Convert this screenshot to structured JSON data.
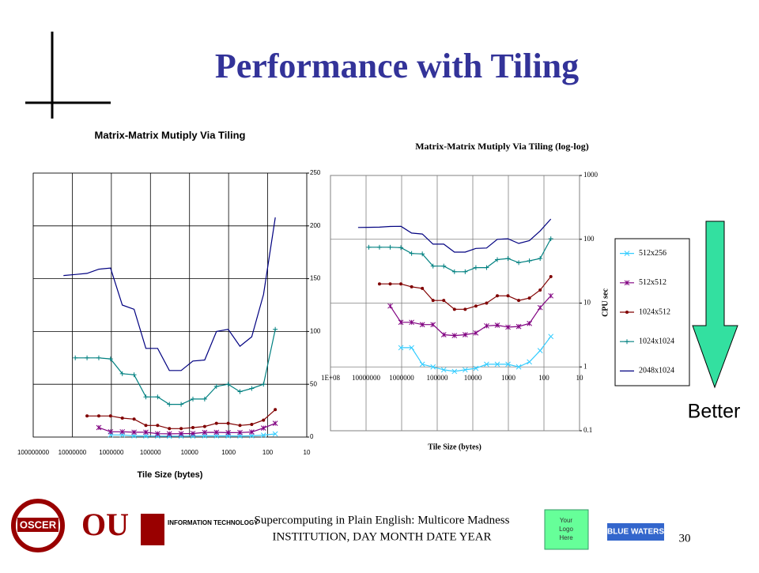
{
  "slide": {
    "title": "Performance with Tiling",
    "better": "Better",
    "footer_line1": "Supercomputing in Plain English: Multicore Madness",
    "footer_line2": "INSTITUTION, DAY MONTH DATE YEAR",
    "logo_placeholder": [
      "Your",
      "Logo",
      "Here"
    ],
    "slide_number": "30",
    "logos": {
      "oscer": "OSCER",
      "ou": "OU",
      "it": "INFORMATION TECHNOLOGY",
      "blue_waters": "BLUE WATERS"
    }
  },
  "chart_data": [
    {
      "type": "line",
      "title": "Matrix-Matrix Mutiply Via Tiling",
      "x_label": "Tile Size (bytes)",
      "xlog": true,
      "xlim": [
        100000000,
        10
      ],
      "xticks": [
        100000000,
        10000000,
        1000000,
        100000,
        10000,
        1000,
        100,
        10
      ],
      "ylim": [
        0,
        250
      ],
      "yticks": [
        0,
        50,
        100,
        150,
        200,
        250
      ],
      "grid": true,
      "legend": false,
      "series": [
        {
          "color": "#33ccff",
          "marker": "x",
          "x": [
            1048576,
            524288,
            262144,
            131072,
            65536,
            32768,
            16384,
            8192,
            4096,
            2048,
            1024,
            512,
            256,
            128,
            64
          ],
          "values": [
            2,
            2,
            1.1,
            1,
            0.9,
            0.85,
            0.9,
            0.95,
            1.1,
            1.1,
            1.1,
            1,
            1.2,
            1.8,
            3
          ]
        },
        {
          "color": "#800080",
          "marker": "asterisk",
          "x": [
            2097152,
            1048576,
            524288,
            262144,
            131072,
            65536,
            32768,
            16384,
            8192,
            4096,
            2048,
            1024,
            512,
            256,
            128,
            64
          ],
          "values": [
            9,
            5,
            5,
            4.6,
            4.6,
            3.2,
            3.1,
            3.2,
            3.4,
            4.4,
            4.5,
            4.2,
            4.3,
            4.8,
            8.5,
            13
          ]
        },
        {
          "color": "#800000",
          "marker": "circle",
          "x": [
            4194304,
            2097152,
            1048576,
            524288,
            262144,
            131072,
            65536,
            32768,
            16384,
            8192,
            4096,
            2048,
            1024,
            512,
            256,
            128,
            64
          ],
          "values": [
            20,
            20,
            20,
            18,
            17,
            11,
            11,
            8,
            8,
            9,
            10,
            13,
            13,
            11,
            12,
            16,
            26
          ]
        },
        {
          "color": "#008080",
          "marker": "plus",
          "x": [
            8388608,
            4194304,
            2097152,
            1048576,
            524288,
            262144,
            131072,
            65536,
            32768,
            16384,
            8192,
            4096,
            2048,
            1024,
            512,
            256,
            128,
            64
          ],
          "values": [
            75,
            75,
            75,
            74,
            60,
            59,
            38,
            38,
            31,
            31,
            36,
            36,
            48,
            50,
            43,
            46,
            50,
            102
          ]
        },
        {
          "color": "#000080",
          "marker": "none",
          "x": [
            16777216,
            8388608,
            4194304,
            2097152,
            1048576,
            524288,
            262144,
            131072,
            65536,
            32768,
            16384,
            8192,
            4096,
            2048,
            1024,
            512,
            256,
            128,
            64
          ],
          "values": [
            153,
            154,
            155,
            159,
            160,
            125,
            121,
            84,
            84,
            63,
            63,
            72,
            73,
            100,
            102,
            86,
            95,
            135,
            208
          ]
        }
      ]
    },
    {
      "type": "line",
      "title": "Matrix-Matrix Mutiply Via Tiling (log-log)",
      "x_label": "Tile Size (bytes)",
      "y_label": "CPU sec",
      "xlog": true,
      "ylog": true,
      "xlim": [
        100000000,
        10
      ],
      "xticks": [
        {
          "value": 100000000,
          "label": "1E+08"
        },
        10000000,
        1000000,
        100000,
        10000,
        1000,
        100,
        10
      ],
      "ylim": [
        0.1,
        1000
      ],
      "yticks": [
        0.1,
        1,
        10,
        100,
        1000
      ],
      "grid": true,
      "legend": "right",
      "series": [
        {
          "name": "512x256",
          "color": "#33ccff",
          "marker": "x",
          "x": [
            1048576,
            524288,
            262144,
            131072,
            65536,
            32768,
            16384,
            8192,
            4096,
            2048,
            1024,
            512,
            256,
            128,
            64
          ],
          "values": [
            2,
            2,
            1.1,
            1,
            0.9,
            0.85,
            0.9,
            0.95,
            1.1,
            1.1,
            1.1,
            1,
            1.2,
            1.8,
            3
          ]
        },
        {
          "name": "512x512",
          "color": "#800080",
          "marker": "asterisk",
          "x": [
            2097152,
            1048576,
            524288,
            262144,
            131072,
            65536,
            32768,
            16384,
            8192,
            4096,
            2048,
            1024,
            512,
            256,
            128,
            64
          ],
          "values": [
            9,
            5,
            5,
            4.6,
            4.6,
            3.2,
            3.1,
            3.2,
            3.4,
            4.4,
            4.5,
            4.2,
            4.3,
            4.8,
            8.5,
            13
          ]
        },
        {
          "name": "1024x512",
          "color": "#800000",
          "marker": "circle",
          "x": [
            4194304,
            2097152,
            1048576,
            524288,
            262144,
            131072,
            65536,
            32768,
            16384,
            8192,
            4096,
            2048,
            1024,
            512,
            256,
            128,
            64
          ],
          "values": [
            20,
            20,
            20,
            18,
            17,
            11,
            11,
            8,
            8,
            9,
            10,
            13,
            13,
            11,
            12,
            16,
            26
          ]
        },
        {
          "name": "1024x1024",
          "color": "#008080",
          "marker": "plus",
          "x": [
            8388608,
            4194304,
            2097152,
            1048576,
            524288,
            262144,
            131072,
            65536,
            32768,
            16384,
            8192,
            4096,
            2048,
            1024,
            512,
            256,
            128,
            64
          ],
          "values": [
            75,
            75,
            75,
            74,
            60,
            59,
            38,
            38,
            31,
            31,
            36,
            36,
            48,
            50,
            43,
            46,
            50,
            102
          ]
        },
        {
          "name": "2048x1024",
          "color": "#000080",
          "marker": "none",
          "x": [
            16777216,
            8388608,
            4194304,
            2097152,
            1048576,
            524288,
            262144,
            131072,
            65536,
            32768,
            16384,
            8192,
            4096,
            2048,
            1024,
            512,
            256,
            128,
            64
          ],
          "values": [
            153,
            154,
            155,
            159,
            160,
            125,
            121,
            84,
            84,
            63,
            63,
            72,
            73,
            100,
            102,
            86,
            95,
            135,
            208
          ]
        }
      ]
    }
  ]
}
